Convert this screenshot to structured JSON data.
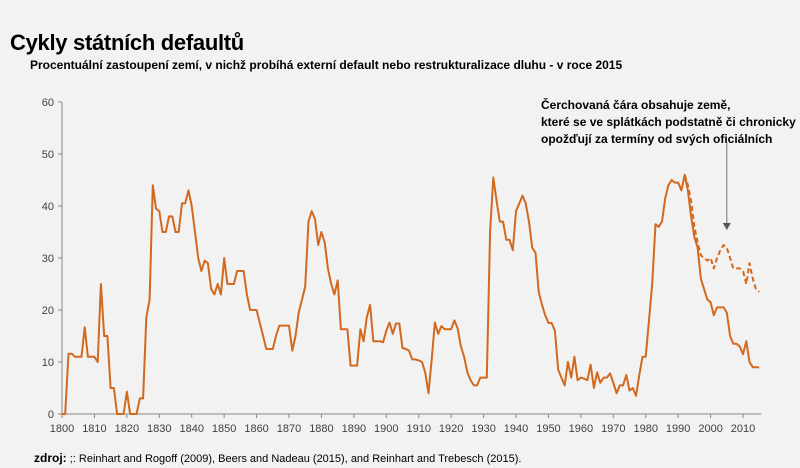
{
  "chart_data": {
    "type": "line",
    "title": "Cykly státních defaultů",
    "subtitle": "Procentuální zastoupení zemí, v nichž probíhá externí default nebo restrukturalizace dluhu  - v roce 2015",
    "xlabel": "",
    "ylabel": "",
    "xlim": [
      1800,
      2015
    ],
    "ylim": [
      0,
      60
    ],
    "x_ticks": [
      1800,
      1810,
      1820,
      1830,
      1840,
      1850,
      1860,
      1870,
      1880,
      1890,
      1900,
      1910,
      1920,
      1930,
      1940,
      1950,
      1960,
      1970,
      1980,
      1990,
      2000,
      2010
    ],
    "y_ticks": [
      0,
      10,
      20,
      30,
      40,
      50,
      60
    ],
    "grid": false,
    "color": "#d2691e",
    "series": [
      {
        "style": "solid",
        "start_year": 1800,
        "values": [
          0,
          0,
          11.6,
          11.6,
          11,
          11,
          11,
          16.7,
          11,
          11,
          11,
          10,
          25,
          15,
          15,
          5,
          5,
          0,
          0,
          0,
          4.3,
          0,
          0,
          0,
          3,
          3,
          18.5,
          22,
          44,
          39.5,
          39,
          35,
          35,
          38,
          38,
          35,
          35,
          40.5,
          40.5,
          43,
          40,
          35,
          30,
          27.5,
          29.5,
          29,
          24,
          23,
          25,
          23,
          30,
          25,
          25,
          25,
          27.5,
          27.5,
          27.5,
          23,
          20,
          20,
          20,
          17.5,
          15,
          12.5,
          12.5,
          12.5,
          15,
          17,
          17,
          17,
          17,
          12.2,
          15,
          19.5,
          22,
          24.5,
          37,
          39,
          37.5,
          32.5,
          35,
          33,
          28,
          25,
          23,
          25.7,
          16.3,
          16.3,
          16.3,
          9.3,
          9.3,
          9.3,
          16.3,
          14,
          18.6,
          21,
          14,
          14,
          14,
          13.8,
          16,
          17.6,
          15.4,
          17.4,
          17.4,
          12.7,
          12.5,
          12.2,
          10.5,
          10.5,
          10.3,
          10,
          8,
          4,
          10.5,
          17.6,
          15.4,
          16.9,
          16.3,
          16.3,
          16.3,
          18,
          16.5,
          13,
          11,
          8,
          6.5,
          5.5,
          5.5,
          7,
          7,
          7,
          35,
          45.5,
          41,
          37,
          37,
          33.5,
          33.5,
          31.5,
          39,
          40.5,
          42,
          40.5,
          37,
          32,
          31,
          23.5,
          21,
          19,
          17.5,
          17.5,
          16,
          8.5,
          7,
          5.5,
          10,
          7,
          11,
          6.5,
          7,
          6.8,
          6.5,
          9.5,
          5,
          8,
          6,
          7,
          7,
          7.8,
          6,
          4,
          5.5,
          5.5,
          7.5,
          4.5,
          5,
          3.5,
          7.5,
          11,
          11,
          18,
          25,
          36.5,
          36,
          37,
          41.5,
          44,
          45,
          44.5,
          44.5,
          43,
          46,
          43,
          38,
          34,
          32,
          26,
          24,
          22,
          21.5,
          19,
          20.5,
          20.5,
          20.5,
          19.5,
          15,
          13.5,
          13.5,
          13,
          11.5,
          14,
          10,
          9,
          9,
          9
        ]
      },
      {
        "style": "dashed",
        "start_year": 1992,
        "values": [
          46,
          44,
          41,
          36,
          33,
          30.5,
          30,
          29.5,
          30,
          28,
          30,
          31.5,
          32.5,
          32,
          30,
          28,
          28,
          28,
          27.5,
          25,
          29,
          26,
          24,
          23.5
        ]
      }
    ],
    "annotation": {
      "lines": [
        "Čerchovaná čára obsahuje země,",
        "které se ve splátkách podstatně či chronicky",
        "opožďují za termíny od svých oficiálních"
      ],
      "arrow_year": 2005
    }
  },
  "source": {
    "label": "zdroj:",
    "text": " ;: Reinhart and Rogoff (2009), Beers and Nadeau (2015), and Reinhart and Trebesch (2015)."
  }
}
